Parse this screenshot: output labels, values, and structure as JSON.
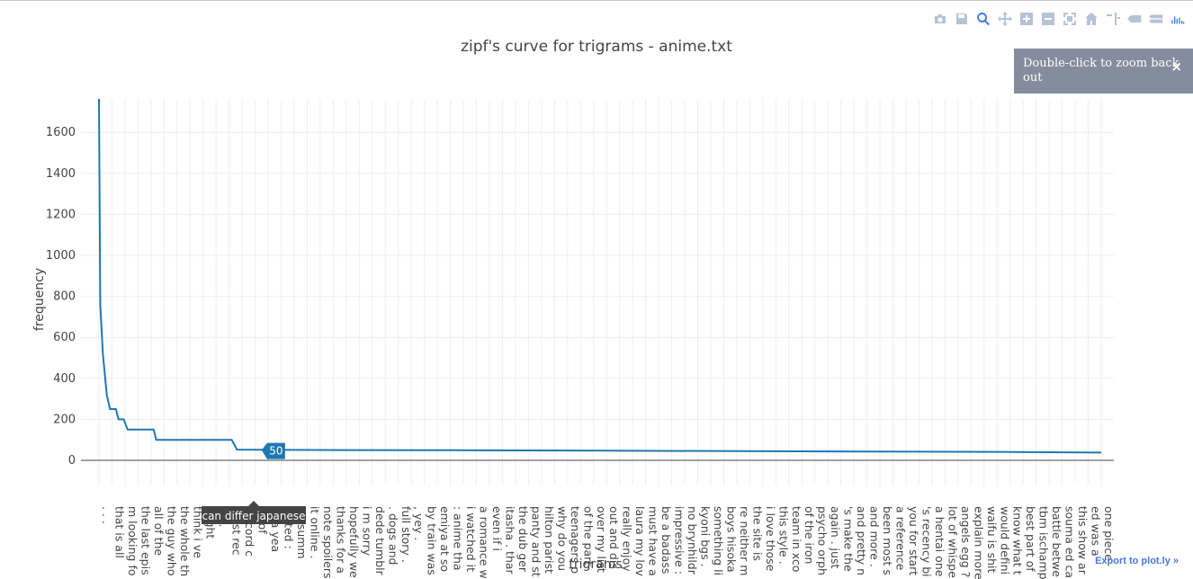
{
  "chart_data": {
    "type": "line",
    "title": "zipf's curve for trigrams - anime.txt",
    "xlabel": "trigrams",
    "ylabel": "frequency",
    "ylim": [
      -100,
      1780
    ],
    "yticks": [
      0,
      200,
      400,
      600,
      800,
      1000,
      1200,
      1400,
      1600
    ],
    "grid": true,
    "series_color": "#1f77b4",
    "categories": [
      ". . .",
      "that is all",
      "m looking fo",
      "the last epis",
      "all of the",
      "the guy who",
      "the whole th",
      "think i ve",
      "ought",
      "ou .",
      "most rec",
      "discord c",
      "all of",
      "ut a yea",
      "rested :",
      "ng summ",
      "it online .",
      "note spoilers",
      "thanks for a",
      "hopefully we",
      "i m sorry",
      "dede tumblr",
      ". dogs and",
      "full story .",
      ", yey .",
      "by train was",
      "emiya at so",
      ": anime tha",
      "i watched it",
      "a romance w",
      "even if i",
      "itasha . thar",
      "the dub ger",
      "panty and st",
      "hilton parist",
      "why do you",
      "teenagers p",
      "of the part",
      "over my list",
      "out and dis",
      "really enjoy",
      "laura my lov",
      "must have a",
      "be a badass",
      "impressive :",
      "no brynhildr",
      "kyoni bgs .",
      "something li",
      "boys hisoka",
      "re neither m",
      "the site is",
      "i love those",
      "this style .",
      "team in xco",
      "of the iron",
      "psycho orph",
      "again . just",
      "'s make the",
      "and pretty n",
      "and more .",
      "been most s",
      "a reference",
      "you for start",
      "'s recency bi",
      "a hentai one",
      "lot of whispe",
      "angels egg ?",
      "explain more",
      "waifu is shit",
      "would defini",
      "know what t",
      "best part of",
      "tbm ischamp",
      "battle betwe",
      "souma ed ca",
      "this show ar",
      "ed was a",
      "one piece"
    ],
    "curve": [
      {
        "rank": 1,
        "frequency": 1780
      },
      {
        "rank": 1.1,
        "frequency": 760
      },
      {
        "rank": 1.3,
        "frequency": 520
      },
      {
        "rank": 1.6,
        "frequency": 320
      },
      {
        "rank": 1.85,
        "frequency": 250
      },
      {
        "rank": 2.3,
        "frequency": 250
      },
      {
        "rank": 2.5,
        "frequency": 200
      },
      {
        "rank": 2.9,
        "frequency": 200
      },
      {
        "rank": 3.2,
        "frequency": 150
      },
      {
        "rank": 5.2,
        "frequency": 150
      },
      {
        "rank": 5.4,
        "frequency": 100
      },
      {
        "rank": 11.2,
        "frequency": 100
      },
      {
        "rank": 11.6,
        "frequency": 52
      },
      {
        "rank": 20,
        "frequency": 50
      },
      {
        "rank": 30,
        "frequency": 49
      },
      {
        "rank": 40,
        "frequency": 47
      },
      {
        "rank": 50,
        "frequency": 45
      },
      {
        "rank": 60,
        "frequency": 43
      },
      {
        "rank": 70,
        "frequency": 41
      },
      {
        "rank": 78,
        "frequency": 38
      }
    ]
  },
  "hover": {
    "value": "50",
    "label": "can differ japanese"
  },
  "notifier": {
    "text": "Double-click to zoom back out",
    "close": "×"
  },
  "export_link": "Export to plot.ly »",
  "modebar": [
    "camera-icon",
    "save-icon",
    "zoom-icon",
    "pan-icon",
    "zoom-in-icon",
    "zoom-out-icon",
    "autoscale-icon",
    "reset-axes-icon",
    "spike-lines-icon",
    "hover-closest-icon",
    "hover-compare-icon",
    "plotly-logo-icon"
  ]
}
